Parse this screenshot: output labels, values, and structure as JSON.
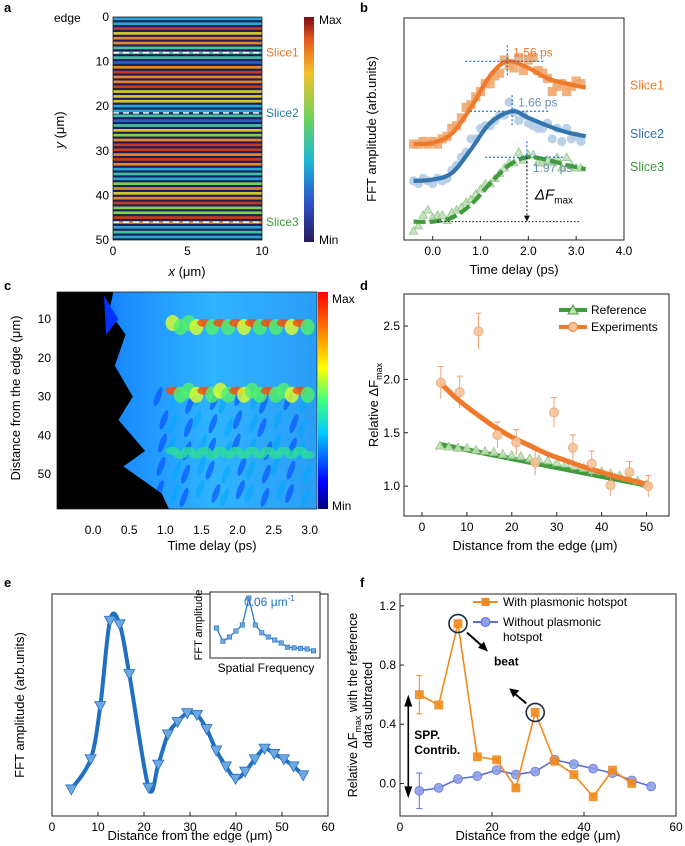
{
  "figure": {
    "panel_labels": [
      "a",
      "b",
      "c",
      "d",
      "e",
      "f"
    ]
  },
  "chart_data": [
    {
      "panel": "a",
      "type": "heatmap",
      "xlabel_italic": "x",
      "xlabel_unit": " (μm)",
      "ylabel_italic": "y",
      "ylabel_unit": " (μm)",
      "xticks": [
        0,
        5,
        10
      ],
      "yticks": [
        0,
        10,
        20,
        30,
        40,
        50
      ],
      "y_edge_label": "edge",
      "xlim": [
        0,
        10
      ],
      "ylim": [
        0,
        50
      ],
      "colorbar": {
        "max_label": "Max",
        "min_label": "Min"
      },
      "slices": [
        {
          "name": "Slice1",
          "y": 8,
          "color": "#e37c2c"
        },
        {
          "name": "Slice2",
          "y": 21.5,
          "color": "#2e77a8"
        },
        {
          "name": "Slice3",
          "y": 46,
          "color": "#3f9b3c"
        }
      ],
      "stripe_count": 46
    },
    {
      "panel": "b",
      "type": "scatter",
      "xlabel": "Time delay (ps)",
      "ylabel": "FFT amplitude (arb.units)",
      "xlim": [
        -0.6,
        4.0
      ],
      "ylim": [
        -0.35,
        8.1
      ],
      "xticks": [
        0.0,
        1.0,
        2.0,
        3.0,
        4.0
      ],
      "delta_label_main": "ΔF",
      "delta_label_sub": "max",
      "delta_x": 1.97,
      "delta_y_top": 2.8,
      "delta_y_bottom": 0.35,
      "baseline_y": 0.35,
      "series": [
        {
          "name": "Slice1",
          "color": "#f0a86e",
          "line": "#ef7a2c",
          "marker": "square",
          "peak_label": "1.56 ps",
          "peak_x": 1.56,
          "peak_y": 6.45,
          "x": [
            -0.4,
            -0.3,
            -0.2,
            -0.1,
            0.0,
            0.1,
            0.2,
            0.3,
            0.4,
            0.5,
            0.6,
            0.7,
            0.8,
            0.9,
            1.0,
            1.1,
            1.2,
            1.3,
            1.4,
            1.5,
            1.6,
            1.7,
            1.8,
            1.9,
            2.0,
            2.1,
            2.2,
            2.3,
            2.4,
            2.5,
            2.6,
            2.7,
            2.8,
            2.9,
            3.0,
            3.1
          ],
          "y": [
            3.3,
            3.3,
            3.4,
            3.3,
            3.4,
            3.3,
            3.5,
            3.6,
            3.9,
            4.0,
            4.3,
            4.7,
            4.8,
            5.1,
            5.3,
            5.6,
            5.6,
            5.9,
            6.0,
            6.5,
            6.3,
            6.2,
            6.6,
            6.1,
            6.5,
            6.6,
            6.1,
            6.0,
            5.8,
            5.3,
            5.5,
            5.6,
            5.3,
            5.5,
            5.7,
            5.6
          ],
          "fit_x": [
            -0.4,
            0.0,
            0.4,
            0.8,
            1.2,
            1.56,
            2.0,
            2.4,
            2.8,
            3.2
          ],
          "fit_y": [
            3.3,
            3.35,
            3.7,
            4.7,
            5.9,
            6.45,
            6.2,
            5.8,
            5.6,
            5.45
          ]
        },
        {
          "name": "Slice2",
          "color": "#b3cde6",
          "line": "#3575ae",
          "marker": "circle",
          "peak_label": "1.66 ps",
          "peak_x": 1.66,
          "peak_y": 4.55,
          "x": [
            -0.4,
            -0.3,
            -0.2,
            -0.1,
            0.0,
            0.1,
            0.2,
            0.3,
            0.4,
            0.5,
            0.6,
            0.7,
            0.8,
            0.9,
            1.0,
            1.1,
            1.2,
            1.3,
            1.4,
            1.5,
            1.6,
            1.7,
            1.8,
            1.9,
            2.0,
            2.1,
            2.2,
            2.3,
            2.4,
            2.5,
            2.6,
            2.7,
            2.8,
            2.9,
            3.0,
            3.1
          ],
          "y": [
            1.9,
            1.8,
            2.0,
            1.9,
            1.8,
            2.0,
            1.9,
            2.0,
            2.3,
            2.5,
            2.8,
            3.0,
            3.5,
            3.5,
            3.9,
            4.0,
            4.0,
            4.2,
            4.4,
            4.4,
            4.9,
            4.5,
            4.2,
            4.4,
            4.1,
            4.0,
            3.9,
            3.9,
            4.1,
            3.5,
            3.9,
            3.4,
            3.9,
            3.5,
            3.6,
            3.4
          ],
          "fit_x": [
            -0.4,
            0.0,
            0.4,
            0.8,
            1.2,
            1.66,
            2.0,
            2.4,
            2.8,
            3.2
          ],
          "fit_y": [
            1.9,
            1.95,
            2.2,
            3.1,
            4.1,
            4.55,
            4.3,
            4.0,
            3.75,
            3.6
          ]
        },
        {
          "name": "Slice3",
          "color": "#bfe0b8",
          "line": "#3f9b3c",
          "marker": "triangle",
          "peak_label": "1.97 ps",
          "peak_x": 1.97,
          "peak_y": 2.8,
          "x": [
            -0.4,
            -0.3,
            -0.2,
            -0.1,
            0.0,
            0.1,
            0.2,
            0.3,
            0.4,
            0.5,
            0.6,
            0.7,
            0.8,
            0.9,
            1.0,
            1.1,
            1.2,
            1.3,
            1.4,
            1.5,
            1.6,
            1.7,
            1.8,
            1.9,
            2.0,
            2.1,
            2.2,
            2.3,
            2.4,
            2.5,
            2.6,
            2.7,
            2.8,
            2.9,
            3.0,
            3.1
          ],
          "y": [
            0.0,
            0.2,
            0.6,
            0.8,
            0.5,
            0.6,
            0.6,
            0.4,
            0.7,
            0.8,
            0.9,
            1.1,
            1.2,
            1.4,
            1.6,
            1.8,
            1.8,
            2.0,
            2.2,
            2.4,
            2.6,
            2.6,
            3.0,
            2.7,
            2.9,
            2.9,
            2.6,
            2.6,
            2.7,
            2.6,
            2.8,
            2.4,
            2.8,
            2.5,
            2.4,
            2.4
          ],
          "fit_x": [
            -0.4,
            0.0,
            0.4,
            0.8,
            1.2,
            1.6,
            1.97,
            2.4,
            2.8,
            3.2
          ],
          "fit_y": [
            0.35,
            0.35,
            0.5,
            1.0,
            1.8,
            2.5,
            2.8,
            2.7,
            2.5,
            2.35
          ]
        }
      ]
    },
    {
      "panel": "c",
      "type": "heatmap",
      "xlabel": "Time delay (ps)",
      "ylabel": "Distance from the edge (μm)",
      "xlim": [
        -0.5,
        3.1
      ],
      "ylim": [
        3,
        59
      ],
      "xticks": [
        0.0,
        0.5,
        1.0,
        1.5,
        2.0,
        2.5,
        3.0
      ],
      "yticks": [
        10,
        20,
        30,
        40,
        50
      ],
      "colorbar": {
        "max_label": "Max",
        "min_label": "Min"
      },
      "hot_rows": [
        11.5,
        29.0,
        44.5
      ]
    },
    {
      "panel": "d",
      "type": "scatter",
      "xlabel": "Distance from the edge (μm)",
      "ylabel_main": "Relative ΔF",
      "ylabel_sub": "max",
      "xlim": [
        -4,
        55
      ],
      "ylim": [
        0.72,
        2.8
      ],
      "xticks": [
        0,
        10,
        20,
        30,
        40,
        50
      ],
      "yticks": [
        1.0,
        1.5,
        2.0,
        2.5
      ],
      "legend_position": "top-right",
      "series": [
        {
          "name": "Reference",
          "color": "#c3e0b5",
          "line": "#3f9b3c",
          "marker": "triangle",
          "x": [
            4,
            6,
            8,
            10,
            12,
            14,
            16,
            18,
            20,
            22,
            24,
            26,
            28,
            30,
            32,
            34,
            36,
            38,
            40,
            42,
            44,
            46,
            48,
            50
          ],
          "y": [
            1.38,
            1.37,
            1.36,
            1.36,
            1.34,
            1.33,
            1.32,
            1.3,
            1.29,
            1.28,
            1.26,
            1.25,
            1.24,
            1.22,
            1.21,
            1.19,
            1.17,
            1.15,
            1.14,
            1.12,
            1.1,
            1.08,
            1.05,
            1.02
          ],
          "fit_x": [
            4,
            51
          ],
          "fit_y": [
            1.39,
            1.0
          ]
        },
        {
          "name": "Experiments",
          "color": "#f6c49a",
          "line": "#ef7a2c",
          "marker": "circle",
          "x": [
            4.2,
            8.4,
            12.6,
            16.8,
            21,
            25.2,
            29.4,
            33.6,
            37.8,
            42,
            46.2,
            50.4
          ],
          "y": [
            1.97,
            1.88,
            2.45,
            1.48,
            1.41,
            1.22,
            1.69,
            1.36,
            1.21,
            1.01,
            1.13,
            1.0
          ],
          "yerr": [
            0.15,
            0.15,
            0.17,
            0.12,
            0.12,
            0.12,
            0.14,
            0.12,
            0.12,
            0.1,
            0.1,
            0.1
          ],
          "fit_x": [
            4,
            8,
            12,
            16,
            20,
            24,
            28,
            32,
            36,
            40,
            44,
            48,
            51
          ],
          "fit_y": [
            1.97,
            1.81,
            1.68,
            1.56,
            1.46,
            1.38,
            1.3,
            1.24,
            1.18,
            1.13,
            1.08,
            1.04,
            1.0
          ]
        }
      ]
    },
    {
      "panel": "e",
      "type": "line",
      "xlabel": "Distance from the edge (μm)",
      "ylabel": "FFT amplitude (arb.units)",
      "xlim": [
        0,
        60
      ],
      "ylim": [
        -0.1,
        1.15
      ],
      "xticks": [
        0,
        10,
        20,
        30,
        40,
        50,
        60
      ],
      "series": [
        {
          "name": "",
          "color": "#1f6fc2",
          "marker_fill": "#6fa8e0",
          "marker": "triangle-down",
          "x": [
            4.2,
            8.4,
            10.5,
            12.6,
            14.7,
            16.8,
            21.0,
            23.1,
            25.2,
            27.3,
            29.4,
            31.5,
            33.6,
            35.7,
            37.8,
            39.9,
            42.0,
            44.1,
            46.2,
            48.3,
            50.4,
            52.5,
            54.6
          ],
          "y": [
            0.05,
            0.22,
            0.52,
            1.0,
            0.98,
            0.7,
            0.06,
            0.19,
            0.36,
            0.43,
            0.48,
            0.47,
            0.39,
            0.27,
            0.18,
            0.11,
            0.15,
            0.22,
            0.28,
            0.25,
            0.22,
            0.18,
            0.13
          ]
        }
      ],
      "inset": {
        "xlabel": "Spatial Frequency",
        "ylabel": "FFT amplitude",
        "peak_label": "0.06 μm",
        "peak_label_sup": "-1",
        "x": [
          0.01,
          0.02,
          0.03,
          0.04,
          0.05,
          0.06,
          0.07,
          0.08,
          0.09,
          0.1,
          0.11,
          0.12,
          0.13,
          0.14,
          0.15,
          0.16
        ],
        "y": [
          0.5,
          0.28,
          0.35,
          0.45,
          0.55,
          1.0,
          0.55,
          0.42,
          0.35,
          0.3,
          0.25,
          0.18,
          0.17,
          0.16,
          0.15,
          0.12
        ]
      }
    },
    {
      "panel": "f",
      "type": "line",
      "xlabel": "Distance from the edge (μm)",
      "ylabel_line1": "Relative ΔF",
      "ylabel_sub": "max",
      "ylabel_line1_rest": " with the reference",
      "ylabel_line2": "data subtracted",
      "xlim": [
        0,
        60
      ],
      "ylim": [
        -0.22,
        1.28
      ],
      "xticks": [
        0,
        20,
        40,
        60
      ],
      "yticks": [
        0.0,
        0.4,
        0.8,
        1.2
      ],
      "annotations": {
        "beat": "beat",
        "spp_line1": "SPP.",
        "spp_line2": "Contrib."
      },
      "series": [
        {
          "name": "With plasmonic hotspot",
          "color": "#f28a1d",
          "marker": "square",
          "x": [
            4.2,
            8.4,
            12.6,
            16.8,
            21.0,
            25.2,
            29.4,
            33.6,
            37.8,
            42.0,
            46.2,
            50.4
          ],
          "y": [
            0.6,
            0.53,
            1.08,
            0.18,
            0.16,
            -0.03,
            0.48,
            0.15,
            0.06,
            -0.09,
            0.09,
            0.0
          ],
          "yerr": [
            0.13,
            0,
            0,
            0,
            0,
            0,
            0,
            0,
            0,
            0,
            0,
            0
          ]
        },
        {
          "name": "Without plasmonic",
          "name_line2": "hotspot",
          "color": "#5b6fd6",
          "marker_fill": "#8fa0e8",
          "marker": "circle",
          "x": [
            4.2,
            8.4,
            12.6,
            16.8,
            21.0,
            25.2,
            29.4,
            33.6,
            37.8,
            42.0,
            46.2,
            50.4,
            54.6
          ],
          "y": [
            -0.05,
            -0.03,
            0.03,
            0.05,
            0.09,
            0.06,
            0.08,
            0.16,
            0.13,
            0.1,
            0.07,
            0.02,
            -0.02
          ],
          "yerr": [
            0.12,
            0,
            0,
            0,
            0,
            0,
            0,
            0,
            0,
            0,
            0,
            0,
            0
          ]
        }
      ]
    }
  ]
}
